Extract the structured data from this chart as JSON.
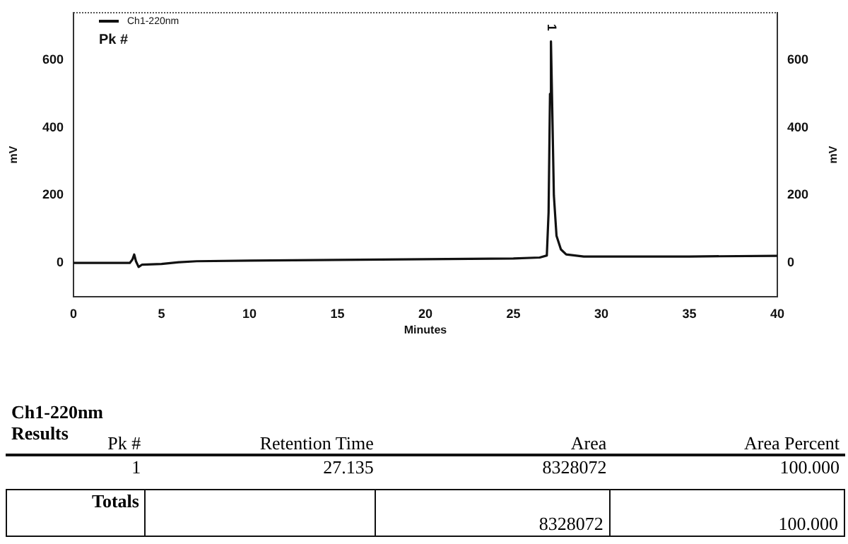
{
  "chart_data": {
    "type": "line",
    "xlabel": "Minutes",
    "ylabel": "mV",
    "y2label": "mV",
    "series": [
      {
        "name": "Ch1-220nm",
        "color": "#111111",
        "x": [
          0,
          3.2,
          3.35,
          3.45,
          3.55,
          3.7,
          3.9,
          5,
          6,
          7,
          10,
          15,
          20,
          25,
          26.5,
          26.9,
          27.0,
          27.08,
          27.135,
          27.2,
          27.3,
          27.45,
          27.7,
          28,
          29,
          35,
          40
        ],
        "values": [
          0,
          0,
          10,
          25,
          5,
          -12,
          -5,
          -3,
          2,
          5,
          7,
          9,
          11,
          13,
          16,
          22,
          150,
          500,
          655,
          480,
          200,
          80,
          40,
          25,
          19,
          19,
          21
        ]
      }
    ],
    "xlim": [
      0,
      40
    ],
    "xticks": [
      0,
      5,
      10,
      15,
      20,
      25,
      30,
      35,
      40
    ],
    "ylim": [
      -100,
      740
    ],
    "yticks": [
      0,
      200,
      400,
      600
    ],
    "y2lim": [
      -100,
      740
    ],
    "y2ticks": [
      0,
      200,
      400,
      600
    ],
    "legend": "top left",
    "grid": false,
    "marker": "none",
    "line_style": "solid",
    "annotations": [
      {
        "text": "1",
        "x": 27.135,
        "y": 655
      },
      "Pk #",
      "Ch1-220nm",
      "Results",
      "Pk #",
      "Retention Time",
      "Area",
      "Area Percent",
      "1",
      "27.135",
      "8328072",
      "100.000",
      "Totals",
      "8328072",
      "100.000"
    ]
  }
}
